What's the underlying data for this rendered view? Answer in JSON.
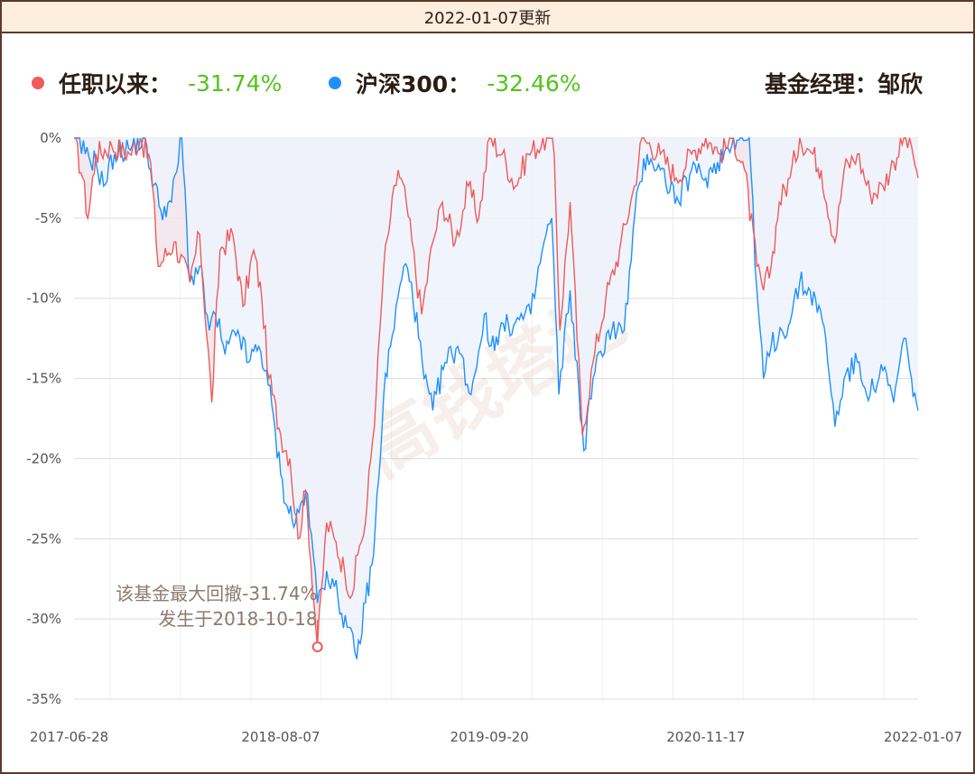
{
  "header": {
    "update_text": "2022-01-07更新"
  },
  "legend": {
    "fund": {
      "label": "任职以来：",
      "value": "-31.74%",
      "color": "#f05a5a"
    },
    "index": {
      "label": "沪深300：",
      "value": "-32.46%",
      "color": "#1e90ff"
    },
    "manager_label": "基金经理：邹欣",
    "value_color": "#52c41a"
  },
  "watermark": "高钱塔地",
  "annotation": {
    "line1": "该基金最大回撤-31.74%",
    "line2": "发生于2018-10-18",
    "date": "2018-10-18",
    "value": -31.74
  },
  "chart_data": {
    "type": "area",
    "title": "",
    "xlabel": "",
    "ylabel": "",
    "ylim": [
      -35,
      0
    ],
    "y_ticks": [
      "0%",
      "-5%",
      "-10%",
      "-15%",
      "-20%",
      "-25%",
      "-30%",
      "-35%"
    ],
    "x_ticks": [
      "2017-06-28",
      "2018-08-07",
      "2019-09-20",
      "2020-11-17",
      "2022-01-07"
    ],
    "grid": true,
    "series": [
      {
        "name": "任职以来",
        "color": "#f05a5a",
        "fill": "#f1e4ea",
        "points": [
          [
            "2017-06-28",
            0
          ],
          [
            "2017-07-15",
            -2.5
          ],
          [
            "2017-07-25",
            -5.0
          ],
          [
            "2017-08-10",
            -1.0
          ],
          [
            "2017-09-10",
            -0.5
          ],
          [
            "2017-10-15",
            -1.0
          ],
          [
            "2017-11-05",
            0
          ],
          [
            "2017-11-25",
            -1.5
          ],
          [
            "2017-12-10",
            -8.0
          ],
          [
            "2018-01-10",
            -6.5
          ],
          [
            "2018-02-10",
            -9.0
          ],
          [
            "2018-03-01",
            -6.0
          ],
          [
            "2018-03-25",
            -16.5
          ],
          [
            "2018-04-10",
            -7.0
          ],
          [
            "2018-05-05",
            -6.0
          ],
          [
            "2018-05-25",
            -10.5
          ],
          [
            "2018-06-15",
            -7.0
          ],
          [
            "2018-07-01",
            -10.0
          ],
          [
            "2018-07-15",
            -15.0
          ],
          [
            "2018-08-07",
            -18.5
          ],
          [
            "2018-08-25",
            -20.0
          ],
          [
            "2018-09-10",
            -25.0
          ],
          [
            "2018-09-25",
            -22.0
          ],
          [
            "2018-10-18",
            -31.74
          ],
          [
            "2018-11-05",
            -24.0
          ],
          [
            "2018-11-20",
            -25.0
          ],
          [
            "2018-12-10",
            -27.0
          ],
          [
            "2018-12-25",
            -28.5
          ],
          [
            "2019-01-05",
            -26.0
          ],
          [
            "2019-01-20",
            -24.0
          ],
          [
            "2019-02-10",
            -16.0
          ],
          [
            "2019-02-25",
            -8.0
          ],
          [
            "2019-03-10",
            -5.0
          ],
          [
            "2019-03-25",
            -2.0
          ],
          [
            "2019-04-10",
            -4.0
          ],
          [
            "2019-05-10",
            -11.0
          ],
          [
            "2019-06-01",
            -6.5
          ],
          [
            "2019-06-20",
            -4.0
          ],
          [
            "2019-07-15",
            -6.5
          ],
          [
            "2019-08-10",
            -3.0
          ],
          [
            "2019-08-30",
            -5.0
          ],
          [
            "2019-09-20",
            0
          ],
          [
            "2019-10-15",
            -1.0
          ],
          [
            "2019-11-10",
            -3.0
          ],
          [
            "2019-12-05",
            -1.0
          ],
          [
            "2020-01-10",
            0
          ],
          [
            "2020-01-25",
            -1.0
          ],
          [
            "2020-02-05",
            -12.0
          ],
          [
            "2020-02-25",
            -4.0
          ],
          [
            "2020-03-20",
            -18.5
          ],
          [
            "2020-04-10",
            -14.0
          ],
          [
            "2020-05-05",
            -10.0
          ],
          [
            "2020-06-01",
            -7.0
          ],
          [
            "2020-06-30",
            -3.0
          ],
          [
            "2020-07-15",
            0
          ],
          [
            "2020-08-20",
            -1.0
          ],
          [
            "2020-09-20",
            -2.5
          ],
          [
            "2020-10-20",
            -1.0
          ],
          [
            "2020-11-17",
            0
          ],
          [
            "2020-12-15",
            -1.0
          ],
          [
            "2021-01-10",
            0
          ],
          [
            "2021-02-01",
            -2.0
          ],
          [
            "2021-02-25",
            -8.0
          ],
          [
            "2021-03-10",
            -9.5
          ],
          [
            "2021-03-25",
            -8.0
          ],
          [
            "2021-04-10",
            -4.0
          ],
          [
            "2021-05-01",
            -2.5
          ],
          [
            "2021-05-20",
            0
          ],
          [
            "2021-06-15",
            -1.0
          ],
          [
            "2021-07-01",
            -2.0
          ],
          [
            "2021-07-28",
            -6.5
          ],
          [
            "2021-08-15",
            -2.0
          ],
          [
            "2021-09-10",
            -1.0
          ],
          [
            "2021-10-05",
            -3.5
          ],
          [
            "2021-10-30",
            -3.0
          ],
          [
            "2021-11-20",
            -1.5
          ],
          [
            "2021-12-10",
            0
          ],
          [
            "2021-12-25",
            -0.5
          ],
          [
            "2022-01-07",
            -2.5
          ]
        ]
      },
      {
        "name": "沪深300",
        "color": "#1e90ff",
        "fill": "#edf3fd",
        "points": [
          [
            "2017-06-28",
            0
          ],
          [
            "2017-07-20",
            -1.0
          ],
          [
            "2017-08-10",
            -1.5
          ],
          [
            "2017-08-25",
            -3.0
          ],
          [
            "2017-09-15",
            -1.0
          ],
          [
            "2017-10-20",
            -0.5
          ],
          [
            "2017-11-10",
            0
          ],
          [
            "2017-11-25",
            -2.0
          ],
          [
            "2017-12-15",
            -4.5
          ],
          [
            "2018-01-05",
            -4.0
          ],
          [
            "2018-01-25",
            0
          ],
          [
            "2018-02-10",
            -9.0
          ],
          [
            "2018-03-01",
            -8.0
          ],
          [
            "2018-03-20",
            -12.0
          ],
          [
            "2018-04-01",
            -11.0
          ],
          [
            "2018-04-20",
            -13.5
          ],
          [
            "2018-05-15",
            -12.0
          ],
          [
            "2018-06-05",
            -14.0
          ],
          [
            "2018-06-25",
            -13.0
          ],
          [
            "2018-07-10",
            -14.5
          ],
          [
            "2018-08-07",
            -21.0
          ],
          [
            "2018-08-20",
            -23.0
          ],
          [
            "2018-09-05",
            -24.0
          ],
          [
            "2018-09-25",
            -22.0
          ],
          [
            "2018-10-10",
            -26.0
          ],
          [
            "2018-10-18",
            -29.0
          ],
          [
            "2018-11-05",
            -27.0
          ],
          [
            "2018-11-20",
            -28.0
          ],
          [
            "2018-12-15",
            -30.5
          ],
          [
            "2019-01-03",
            -32.5
          ],
          [
            "2019-01-20",
            -29.0
          ],
          [
            "2019-02-05",
            -26.0
          ],
          [
            "2019-02-25",
            -16.0
          ],
          [
            "2019-03-10",
            -13.0
          ],
          [
            "2019-04-05",
            -8.0
          ],
          [
            "2019-04-20",
            -9.0
          ],
          [
            "2019-05-15",
            -15.0
          ],
          [
            "2019-06-01",
            -17.0
          ],
          [
            "2019-06-25",
            -14.0
          ],
          [
            "2019-07-20",
            -13.0
          ],
          [
            "2019-08-15",
            -16.0
          ],
          [
            "2019-09-10",
            -11.0
          ],
          [
            "2019-09-20",
            -13.0
          ],
          [
            "2019-10-10",
            -12.0
          ],
          [
            "2019-11-10",
            -11.5
          ],
          [
            "2019-12-10",
            -11.0
          ],
          [
            "2020-01-05",
            -6.5
          ],
          [
            "2020-01-20",
            -5.0
          ],
          [
            "2020-02-03",
            -16.0
          ],
          [
            "2020-02-25",
            -9.5
          ],
          [
            "2020-03-23",
            -19.5
          ],
          [
            "2020-04-10",
            -15.0
          ],
          [
            "2020-05-10",
            -12.0
          ],
          [
            "2020-06-10",
            -12.0
          ],
          [
            "2020-07-08",
            -3.0
          ],
          [
            "2020-07-25",
            -1.0
          ],
          [
            "2020-08-20",
            -2.0
          ],
          [
            "2020-09-25",
            -4.0
          ],
          [
            "2020-10-20",
            -2.0
          ],
          [
            "2020-11-17",
            -2.5
          ],
          [
            "2020-12-10",
            -1.5
          ],
          [
            "2021-01-10",
            0
          ],
          [
            "2021-02-10",
            0
          ],
          [
            "2021-02-25",
            -9.5
          ],
          [
            "2021-03-10",
            -15.0
          ],
          [
            "2021-03-25",
            -13.0
          ],
          [
            "2021-04-15",
            -12.0
          ],
          [
            "2021-05-01",
            -11.5
          ],
          [
            "2021-05-20",
            -9.0
          ],
          [
            "2021-06-20",
            -10.0
          ],
          [
            "2021-07-10",
            -12.5
          ],
          [
            "2021-07-28",
            -18.0
          ],
          [
            "2021-08-15",
            -15.0
          ],
          [
            "2021-09-10",
            -14.0
          ],
          [
            "2021-10-05",
            -16.0
          ],
          [
            "2021-10-30",
            -14.5
          ],
          [
            "2021-11-20",
            -16.5
          ],
          [
            "2021-12-10",
            -12.5
          ],
          [
            "2021-12-25",
            -15.0
          ],
          [
            "2022-01-07",
            -17.0
          ]
        ]
      }
    ],
    "annotations": [
      {
        "text": "该基金最大回撤-31.74%",
        "x": "2018-10-18",
        "y": -31.74
      },
      {
        "text": "发生于2018-10-18",
        "x": "2018-10-18",
        "y": -31.74
      }
    ]
  }
}
